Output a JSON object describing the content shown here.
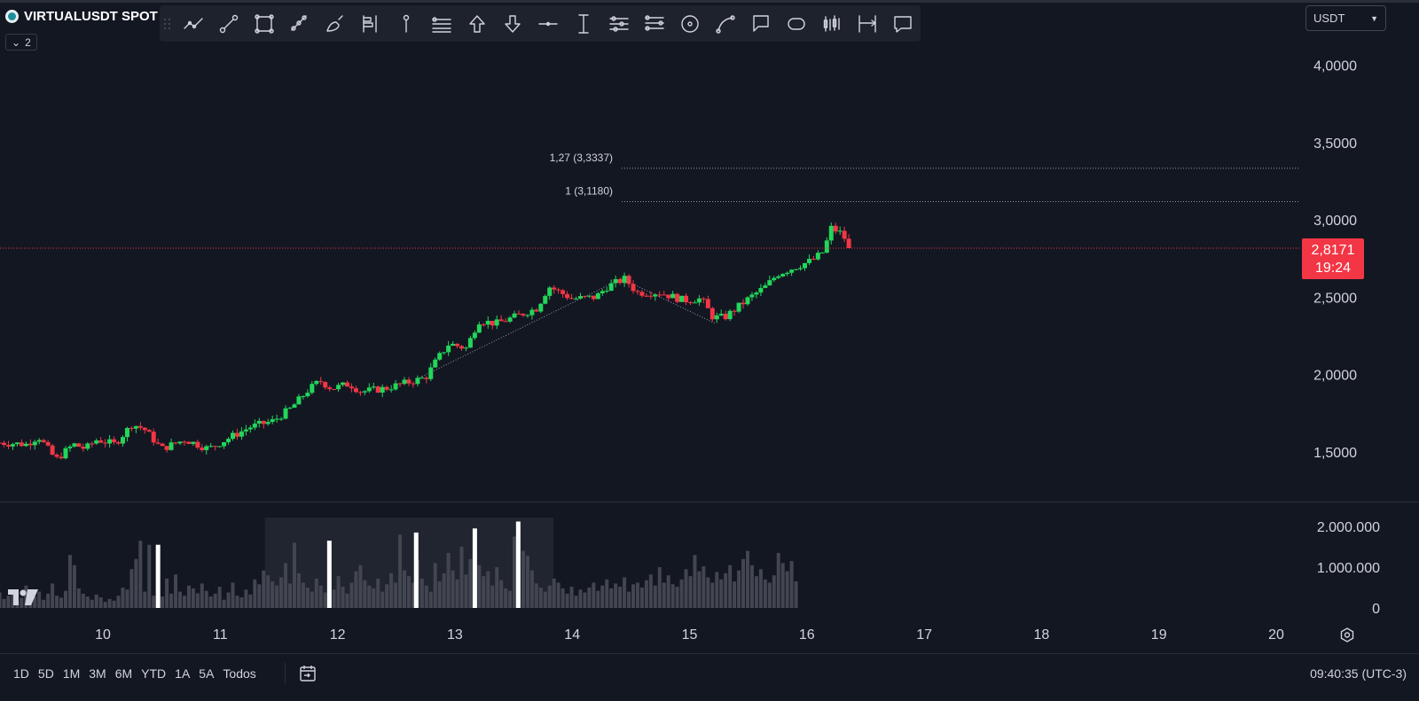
{
  "symbol": {
    "name": "VIRTUALUSDT SPOT",
    "collapse_count": "2"
  },
  "currency_selector": {
    "value": "USDT"
  },
  "toolbar": {
    "tools": [
      {
        "icon": "trend-line-icon"
      },
      {
        "icon": "ray-line-icon"
      },
      {
        "icon": "rectangle-icon"
      },
      {
        "icon": "parallel-channel-icon"
      },
      {
        "icon": "brush-icon"
      },
      {
        "icon": "long-position-icon"
      },
      {
        "icon": "pitchfork-icon"
      },
      {
        "icon": "fib-retracement-icon"
      },
      {
        "icon": "arrow-up-icon"
      },
      {
        "icon": "arrow-down-icon"
      },
      {
        "icon": "horizontal-line-icon"
      },
      {
        "icon": "vertical-line-icon"
      },
      {
        "icon": "fib-channel-icon"
      },
      {
        "icon": "fib-extension-icon"
      },
      {
        "icon": "circle-icon"
      },
      {
        "icon": "curve-icon"
      },
      {
        "icon": "callout-icon"
      },
      {
        "icon": "comment-icon"
      },
      {
        "icon": "bars-pattern-icon"
      },
      {
        "icon": "date-range-icon"
      },
      {
        "icon": "note-icon"
      }
    ]
  },
  "current_price": {
    "price": "2,8171",
    "countdown": "19:24",
    "color": "#f23645"
  },
  "fib_levels": [
    {
      "label": "1,27 (3,3337)",
      "value": 3.3337
    },
    {
      "label": "1 (3,1180)",
      "value": 3.118
    }
  ],
  "bottom_bar": {
    "ranges": [
      "1D",
      "5D",
      "1M",
      "3M",
      "6M",
      "YTD",
      "1A",
      "5A",
      "Todos"
    ],
    "clock": "09:40:35 (UTC-3)"
  },
  "colors": {
    "up": "#089981",
    "up_bright": "#22d65a",
    "down": "#f23645",
    "background": "#131722",
    "volume": "#434651"
  },
  "chart_data": {
    "type": "candlestick",
    "price_axis": {
      "ticks": [
        "4,0000",
        "3,5000",
        "3,0000",
        "2,5000",
        "2,0000",
        "1,5000"
      ],
      "values": [
        4.0,
        3.5,
        3.0,
        2.5,
        2.0,
        1.5
      ]
    },
    "volume_axis": {
      "ticks": [
        "2.000.000",
        "1.000.000",
        "0"
      ],
      "values": [
        2000000,
        1000000,
        0
      ]
    },
    "x_axis": {
      "ticks": [
        "10",
        "11",
        "12",
        "13",
        "14",
        "15",
        "16",
        "17",
        "18",
        "19",
        "20"
      ],
      "values": [
        10,
        11,
        12,
        13,
        14,
        15,
        16,
        17,
        18,
        19,
        20
      ]
    },
    "x_start": 9.12,
    "bar_step": 0.0375,
    "close_anchors": [
      [
        9.12,
        1.56
      ],
      [
        9.35,
        1.55
      ],
      [
        9.45,
        1.6
      ],
      [
        9.6,
        1.45
      ],
      [
        9.75,
        1.55
      ],
      [
        9.85,
        1.52
      ],
      [
        9.95,
        1.58
      ],
      [
        10.1,
        1.55
      ],
      [
        10.25,
        1.68
      ],
      [
        10.35,
        1.65
      ],
      [
        10.5,
        1.52
      ],
      [
        10.7,
        1.58
      ],
      [
        10.9,
        1.52
      ],
      [
        11.05,
        1.58
      ],
      [
        11.25,
        1.66
      ],
      [
        11.45,
        1.7
      ],
      [
        11.6,
        1.78
      ],
      [
        11.75,
        1.9
      ],
      [
        11.85,
        1.96
      ],
      [
        11.95,
        1.91
      ],
      [
        12.1,
        1.94
      ],
      [
        12.2,
        1.89
      ],
      [
        12.4,
        1.91
      ],
      [
        12.55,
        1.94
      ],
      [
        12.75,
        1.98
      ],
      [
        12.85,
        2.1
      ],
      [
        12.95,
        2.2
      ],
      [
        13.1,
        2.17
      ],
      [
        13.2,
        2.35
      ],
      [
        13.35,
        2.33
      ],
      [
        13.5,
        2.37
      ],
      [
        13.7,
        2.43
      ],
      [
        13.8,
        2.57
      ],
      [
        14.0,
        2.49
      ],
      [
        14.2,
        2.5
      ],
      [
        14.3,
        2.57
      ],
      [
        14.45,
        2.62
      ],
      [
        14.55,
        2.53
      ],
      [
        14.75,
        2.53
      ],
      [
        14.95,
        2.48
      ],
      [
        15.1,
        2.49
      ],
      [
        15.2,
        2.37
      ],
      [
        15.3,
        2.37
      ],
      [
        15.5,
        2.49
      ],
      [
        15.65,
        2.57
      ],
      [
        15.75,
        2.65
      ],
      [
        15.85,
        2.68
      ],
      [
        15.95,
        2.71
      ],
      [
        16.05,
        2.74
      ],
      [
        16.15,
        2.8
      ],
      [
        16.2,
        2.95
      ],
      [
        16.3,
        2.91
      ],
      [
        16.37,
        2.8171
      ]
    ],
    "volume_values": [
      0.38,
      0.22,
      0.3,
      0.45,
      0.18,
      0.25,
      0.55,
      0.32,
      0.28,
      0.4,
      0.2,
      0.35,
      0.6,
      0.3,
      0.25,
      0.42,
      1.3,
      1.05,
      0.48,
      0.35,
      0.28,
      0.2,
      0.33,
      0.26,
      0.15,
      0.22,
      0.18,
      0.3,
      0.5,
      0.45,
      0.95,
      1.2,
      1.65,
      0.4,
      1.55,
      0.3,
      0.6,
      0.28,
      0.72,
      0.35,
      0.82,
      0.4,
      0.3,
      0.55,
      0.48,
      0.36,
      0.6,
      0.42,
      0.28,
      0.35,
      0.52,
      0.2,
      0.38,
      0.62,
      0.3,
      0.26,
      0.45,
      0.33,
      0.7,
      0.58,
      0.92,
      0.8,
      0.65,
      0.55,
      0.75,
      1.1,
      0.6,
      1.6,
      0.85,
      0.62,
      0.5,
      0.4,
      0.72,
      0.55,
      0.38,
      0.6,
      0.45,
      0.78,
      0.52,
      0.35,
      0.62,
      0.9,
      1.05,
      0.68,
      0.55,
      0.48,
      0.72,
      0.4,
      0.58,
      0.85,
      0.62,
      1.8,
      0.92,
      0.78,
      0.62,
      1.18,
      0.72,
      0.55,
      0.4,
      1.1,
      0.65,
      0.85,
      1.35,
      0.92,
      0.7,
      1.5,
      0.82,
      1.2,
      0.62,
      1.05,
      0.78,
      0.9,
      0.55,
      1.0,
      0.68,
      0.48,
      0.42,
      1.75,
      1.02,
      1.4,
      1.28,
      0.92,
      0.6,
      0.5,
      0.4,
      0.55,
      0.72,
      0.62,
      0.48,
      0.35,
      0.52,
      0.3,
      0.45,
      0.38,
      0.5,
      0.62,
      0.42,
      0.55,
      0.7,
      0.48,
      0.6,
      0.52,
      0.75,
      0.4,
      0.58,
      0.62,
      0.5,
      0.68,
      0.82,
      0.55,
      1.0,
      0.62,
      0.8,
      0.58,
      0.52,
      0.7,
      0.95,
      0.78,
      1.3,
      0.9,
      1.02,
      0.75,
      0.62,
      0.88,
      0.7,
      0.85,
      1.05,
      0.65,
      0.92,
      1.2,
      1.4,
      1.05,
      0.78,
      0.95,
      0.7,
      0.62,
      0.8,
      1.35,
      1.1,
      0.9,
      1.15,
      0.65
    ],
    "highlighted_volume": [
      {
        "x": 10.47,
        "value": 1.55
      },
      {
        "x": 11.93,
        "value": 1.65
      },
      {
        "x": 12.67,
        "value": 1.85
      },
      {
        "x": 13.17,
        "value": 1.95
      },
      {
        "x": 13.54,
        "value": 2.12
      }
    ],
    "highlight_range": [
      11.38,
      13.84
    ],
    "volume_max": 2.25
  }
}
